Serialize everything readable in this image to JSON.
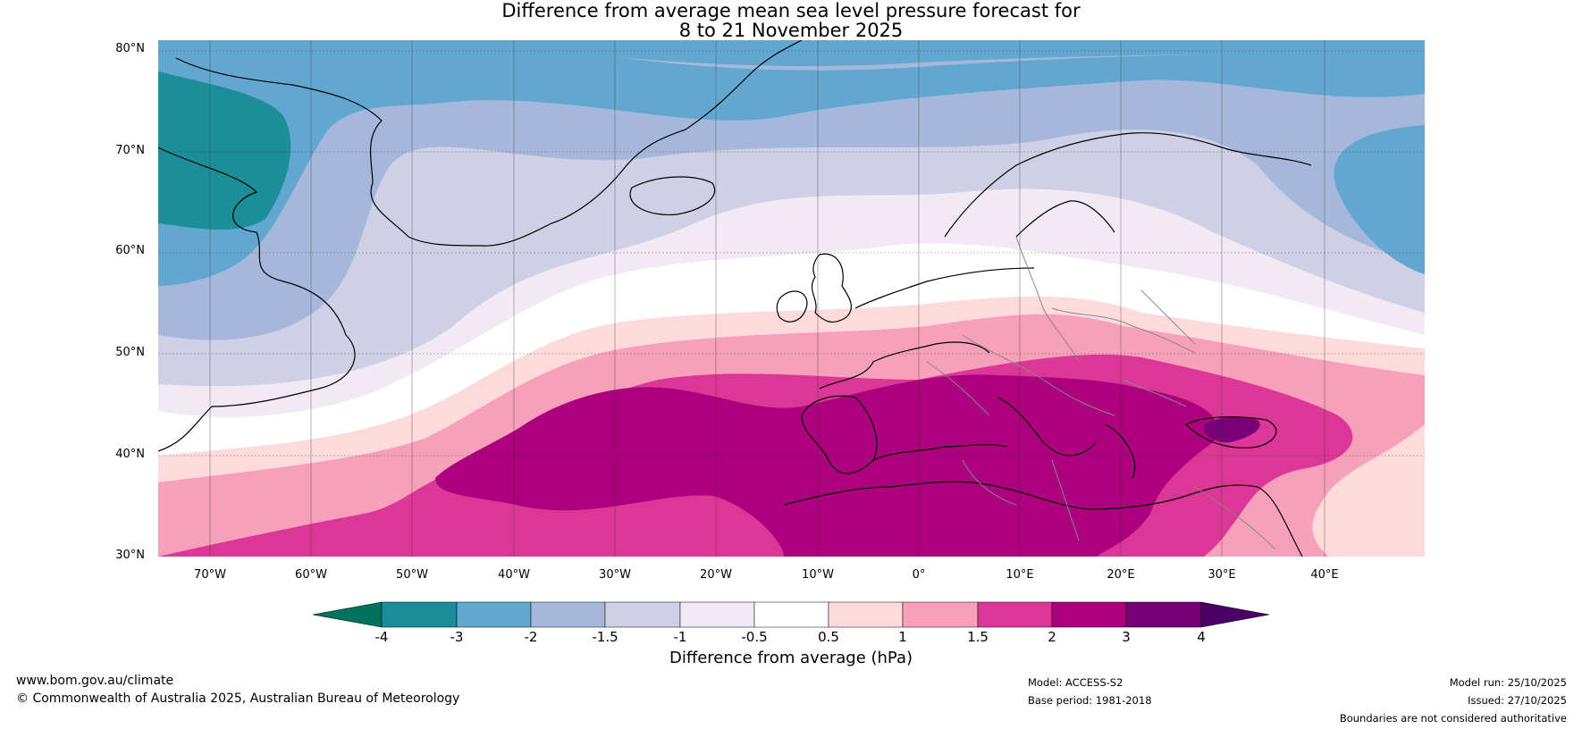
{
  "title": {
    "line1": "Difference from average mean sea level pressure forecast for",
    "line2": "8 to 21 November 2025"
  },
  "latitude_labels": [
    "80°N",
    "70°N",
    "60°N",
    "50°N",
    "40°N",
    "30°N"
  ],
  "longitude_labels": [
    "70°W",
    "60°W",
    "50°W",
    "40°W",
    "30°W",
    "20°W",
    "10°W",
    "0°",
    "10°E",
    "20°E",
    "30°E",
    "40°E"
  ],
  "colorbar": {
    "tick_labels": [
      "-4",
      "-3",
      "-2",
      "-1.5",
      "-1",
      "-0.5",
      "0.5",
      "1",
      "1.5",
      "2",
      "3",
      "4"
    ],
    "label": "Difference from average (hPa)",
    "colors": {
      "below_-4": "#00735f",
      "-4_-3": "#1b8e99",
      "-3_-2": "#62a7cf",
      "-2_-1.5": "#a5b8db",
      "-1.5_-1": "#cfcfe6",
      "-1_-0.5": "#f1e9f4",
      "-0.5_0.5": "#ffffff",
      "0.5_1": "#fddadc",
      "1_1.5": "#f7a0bb",
      "1.5_2": "#dc3796",
      "2_3": "#ad007e",
      "3_4": "#780078",
      "above_4": "#4a0062"
    }
  },
  "footer": {
    "website": "www.bom.gov.au/climate",
    "copyright": "© Commonwealth of Australia 2025, Australian Bureau of Meteorology",
    "model": "Model: ACCESS-S2",
    "base_period": "Base period: 1981-2018",
    "model_run": "Model run: 25/10/2025",
    "issued": "Issued: 27/10/2025",
    "disclaimer": "Boundaries are not considered authoritative"
  }
}
